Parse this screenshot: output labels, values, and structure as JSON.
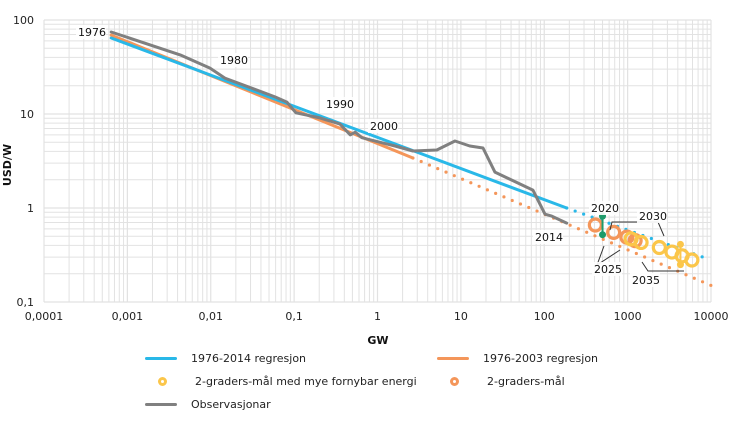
{
  "chart_data": {
    "type": "line",
    "xscale": "log",
    "yscale": "log",
    "xlabel": "GW",
    "ylabel": "USD/W",
    "xlim": [
      0.0001,
      10000
    ],
    "ylim": [
      0.1,
      100
    ],
    "grid": true,
    "x_ticks": [
      "0,0001",
      "0,001",
      "0,01",
      "0,1",
      "1",
      "10",
      "100",
      "1000",
      "10000"
    ],
    "x_tick_values": [
      0.0001,
      0.001,
      0.01,
      0.1,
      1,
      10,
      100,
      1000,
      10000
    ],
    "y_ticks": [
      "0,1",
      "1",
      "10",
      "100"
    ],
    "y_tick_values": [
      0.1,
      1,
      10,
      100
    ],
    "series": [
      {
        "name": "1976-2014 regresjon",
        "color": "#29b8e8",
        "style": "solid",
        "points": [
          [
            0.00064,
            64.3
          ],
          [
            186,
            1.0
          ]
        ],
        "extension": {
          "style": "dotted",
          "points": [
            [
              186,
              1.0
            ],
            [
              8900,
              0.29
            ]
          ]
        }
      },
      {
        "name": "1976-2003 regresjon",
        "color": "#f4965a",
        "style": "solid",
        "points": [
          [
            0.00064,
            69
          ],
          [
            2.66,
            3.4
          ]
        ],
        "extension": {
          "style": "dotted",
          "points": [
            [
              2.66,
              3.4
            ],
            [
              10000,
              0.15
            ]
          ]
        }
      },
      {
        "name": "Observasjonar",
        "color": "#808080",
        "style": "solid",
        "points": [
          [
            0.00064,
            74.5
          ],
          [
            0.0043,
            42.5
          ],
          [
            0.0098,
            30.8
          ],
          [
            0.0148,
            24.1
          ],
          [
            0.059,
            15.2
          ],
          [
            0.082,
            13.4
          ],
          [
            0.105,
            10.3
          ],
          [
            0.204,
            9.1
          ],
          [
            0.355,
            7.8
          ],
          [
            0.47,
            6.0
          ],
          [
            0.54,
            6.4
          ],
          [
            0.65,
            5.6
          ],
          [
            1.62,
            4.57
          ],
          [
            2.66,
            4.04
          ],
          [
            5.15,
            4.14
          ],
          [
            8.5,
            5.16
          ],
          [
            12.8,
            4.57
          ],
          [
            18.4,
            4.35
          ],
          [
            25.6,
            2.41
          ],
          [
            73,
            1.55
          ],
          [
            102,
            0.86
          ],
          [
            123,
            0.82
          ],
          [
            186,
            0.69
          ]
        ]
      },
      {
        "name": "2-graders-mål med mye fornybar energi",
        "color": "#fbc64a",
        "style": "markers",
        "points": [
          [
            1100,
            0.47
          ],
          [
            1450,
            0.43
          ],
          [
            2400,
            0.38
          ],
          [
            3400,
            0.34
          ],
          [
            4500,
            0.31
          ],
          [
            5900,
            0.28
          ]
        ],
        "range": {
          "x": 4300,
          "y": [
            0.25,
            0.41
          ]
        }
      },
      {
        "name": "2-graders-mål",
        "color": "#f4965a",
        "style": "markers",
        "points": [
          [
            410,
            0.66
          ],
          [
            680,
            0.55
          ],
          [
            980,
            0.49
          ],
          [
            1230,
            0.45
          ]
        ]
      },
      {
        "name": "2020 range",
        "color": "#1e9a6a",
        "style": "range",
        "range": {
          "x": 500,
          "y": [
            0.52,
            0.82
          ]
        }
      }
    ],
    "annotations": [
      {
        "text": "1976",
        "x": 0.00064,
        "y": 74.5
      },
      {
        "text": "1980",
        "x": 0.02,
        "y": 30
      },
      {
        "text": "1990",
        "x": 0.5,
        "y": 10.5
      },
      {
        "text": "2000",
        "x": 3,
        "y": 6.2
      },
      {
        "text": "2014",
        "x": 180,
        "y": 0.55
      },
      {
        "text": "2020",
        "x": 500,
        "y": 0.9
      },
      {
        "text": "2025",
        "x": 550,
        "y": 0.32
      },
      {
        "text": "2030",
        "x": 1700,
        "y": 0.75
      },
      {
        "text": "2035",
        "x": 1700,
        "y": 0.24
      }
    ],
    "legend": {
      "placement": "bottom",
      "entries": [
        {
          "label": "1976-2014 regresjon",
          "kind": "line",
          "color": "#29b8e8"
        },
        {
          "label": "1976-2003 regresjon",
          "kind": "line",
          "color": "#f4965a"
        },
        {
          "label": "2-graders-mål med mye fornybar energi",
          "kind": "ring",
          "color": "#fbc64a"
        },
        {
          "label": "2-graders-mål",
          "kind": "ring",
          "color": "#f4965a"
        },
        {
          "label": "Observasjonar",
          "kind": "line",
          "color": "#808080"
        }
      ]
    }
  }
}
